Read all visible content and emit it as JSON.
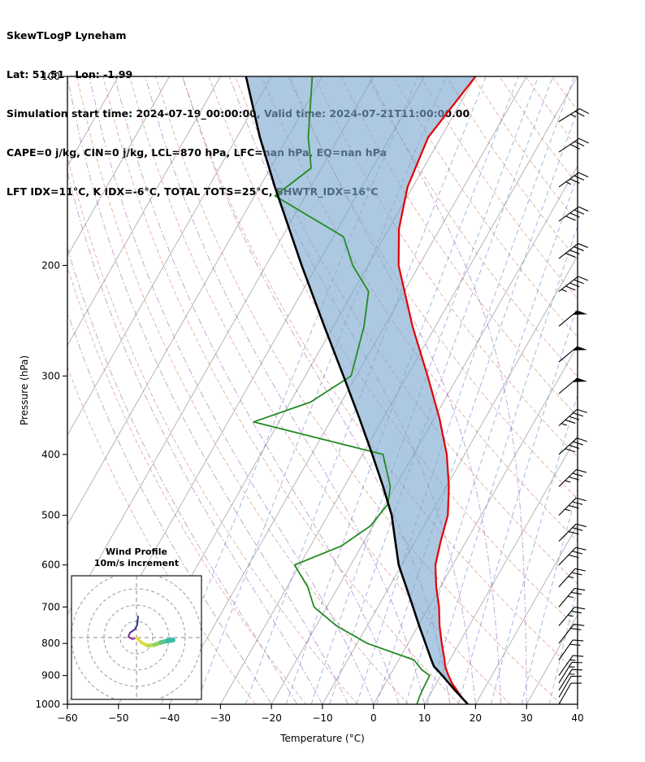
{
  "header": {
    "line1": "SkewTLogP Lyneham",
    "line2": "Lat: 51.51   Lon: -1.99",
    "line3": "Simulation start time: 2024-07-19_00:00:00, Valid time: 2024-07-21T11:00:00.00",
    "line4": "CAPE=0 j/kg, CIN=0 j/kg, LCL=870 hPa, LFC=nan hPa, EQ=nan hPa",
    "line5": "LFT IDX=11°C, K IDX=-6°C, TOTAL TOTS=25°C, SHWTR_IDX=16°C"
  },
  "chart_data": {
    "type": "line",
    "subtype": "skew-t-log-p",
    "title": "SkewTLogP Lyneham",
    "xlabel": "Temperature (°C)",
    "ylabel": "Pressure (hPa)",
    "xlim": [
      -60,
      40
    ],
    "pressure_lim": [
      100,
      1000
    ],
    "x_ticks": [
      -60,
      -50,
      -40,
      -30,
      -20,
      -10,
      0,
      10,
      20,
      30,
      40
    ],
    "y_ticks": [
      100,
      200,
      300,
      400,
      500,
      600,
      700,
      800,
      900,
      1000
    ],
    "skew_degC_per_decade": 70,
    "grid": true,
    "series": [
      {
        "name": "temperature",
        "color": "#e60000",
        "width": 2.2,
        "points": [
          [
            1000,
            18.5
          ],
          [
            975,
            16.5
          ],
          [
            950,
            14.8
          ],
          [
            925,
            13.0
          ],
          [
            900,
            11.5
          ],
          [
            870,
            9.8
          ],
          [
            850,
            9.0
          ],
          [
            800,
            6.6
          ],
          [
            750,
            4.2
          ],
          [
            700,
            2.0
          ],
          [
            650,
            -0.8
          ],
          [
            600,
            -3.4
          ],
          [
            550,
            -5.0
          ],
          [
            500,
            -6.5
          ],
          [
            450,
            -9.5
          ],
          [
            400,
            -13.5
          ],
          [
            350,
            -19.0
          ],
          [
            300,
            -26.0
          ],
          [
            250,
            -34.5
          ],
          [
            200,
            -44.0
          ],
          [
            175,
            -48.0
          ],
          [
            150,
            -51.0
          ],
          [
            125,
            -52.5
          ],
          [
            100,
            -50.0
          ]
        ]
      },
      {
        "name": "dewpoint",
        "color": "#228B22",
        "width": 1.8,
        "points": [
          [
            1000,
            8.5
          ],
          [
            975,
            8.2
          ],
          [
            950,
            8.0
          ],
          [
            925,
            7.9
          ],
          [
            900,
            7.8
          ],
          [
            880,
            5.5
          ],
          [
            850,
            3.0
          ],
          [
            800,
            -8.0
          ],
          [
            750,
            -16.0
          ],
          [
            700,
            -22.5
          ],
          [
            650,
            -26.0
          ],
          [
            600,
            -31.0
          ],
          [
            560,
            -24.0
          ],
          [
            520,
            -20.5
          ],
          [
            480,
            -19.5
          ],
          [
            450,
            -21.0
          ],
          [
            400,
            -26.0
          ],
          [
            355,
            -55.0
          ],
          [
            330,
            -46.0
          ],
          [
            300,
            -41.0
          ],
          [
            250,
            -44.0
          ],
          [
            220,
            -47.0
          ],
          [
            200,
            -53.0
          ],
          [
            180,
            -58.0
          ],
          [
            155,
            -76.0
          ],
          [
            140,
            -72.0
          ],
          [
            125,
            -76.0
          ],
          [
            100,
            -82.0
          ]
        ]
      },
      {
        "name": "parcel",
        "color": "#000000",
        "width": 2.6,
        "points": [
          [
            1000,
            18.5
          ],
          [
            950,
            14.4
          ],
          [
            900,
            10.3
          ],
          [
            870,
            7.6
          ],
          [
            850,
            6.4
          ],
          [
            800,
            3.4
          ],
          [
            750,
            0.2
          ],
          [
            700,
            -3.1
          ],
          [
            650,
            -6.7
          ],
          [
            600,
            -10.6
          ],
          [
            550,
            -13.9
          ],
          [
            500,
            -17.5
          ],
          [
            450,
            -22.4
          ],
          [
            400,
            -28.1
          ],
          [
            350,
            -34.7
          ],
          [
            300,
            -42.5
          ],
          [
            250,
            -51.8
          ],
          [
            200,
            -63.0
          ],
          [
            175,
            -69.5
          ],
          [
            150,
            -77.0
          ],
          [
            125,
            -85.5
          ],
          [
            100,
            -95.0
          ]
        ]
      }
    ],
    "shading": {
      "between": [
        "parcel",
        "temperature"
      ],
      "color": "#7ba7cf",
      "opacity": 0.62
    },
    "background": {
      "isotherm_color": "#8c8c8c",
      "isotherm_step": 10,
      "dry_adiabat_color": "#cc5555",
      "dry_adiabat_theta_K": [
        250,
        260,
        270,
        280,
        290,
        300,
        310,
        320,
        330,
        340,
        350,
        360,
        370,
        380,
        390,
        400,
        410,
        420,
        430,
        440,
        450,
        460
      ],
      "moist_adiabat_color": "#9060b0",
      "moist_adiabat_start_C": [
        -20,
        -15,
        -10,
        -5,
        0,
        5,
        10,
        15,
        20,
        25,
        30
      ],
      "mixing_ratio_color": "#5566cc",
      "mixing_ratio_values_g_kg": [
        0.1,
        0.2,
        0.5,
        1,
        1.5,
        2,
        3,
        4,
        6,
        8,
        12,
        18,
        26,
        36
      ]
    },
    "winds_p_dir_kt": [
      [
        1000,
        30,
        10
      ],
      [
        975,
        30,
        10
      ],
      [
        950,
        32,
        15
      ],
      [
        925,
        32,
        15
      ],
      [
        900,
        35,
        15
      ],
      [
        850,
        35,
        20
      ],
      [
        800,
        38,
        20
      ],
      [
        750,
        40,
        25
      ],
      [
        700,
        40,
        25
      ],
      [
        650,
        42,
        25
      ],
      [
        600,
        44,
        30
      ],
      [
        550,
        45,
        30
      ],
      [
        500,
        45,
        35
      ],
      [
        450,
        46,
        35
      ],
      [
        400,
        48,
        40
      ],
      [
        360,
        48,
        45
      ],
      [
        320,
        50,
        50
      ],
      [
        285,
        50,
        50
      ],
      [
        250,
        50,
        50
      ],
      [
        220,
        52,
        45
      ],
      [
        195,
        52,
        40
      ],
      [
        170,
        54,
        40
      ],
      [
        150,
        54,
        35
      ],
      [
        132,
        56,
        30
      ],
      [
        118,
        58,
        25
      ]
    ],
    "hodograph": {
      "title_line1": "Wind Profile",
      "title_line2": "10m/s increment",
      "ring_interval_ms": 10,
      "rings_ms": [
        10,
        20,
        30,
        40
      ],
      "trace_points_uv_ms": [
        [
          1,
          13
        ],
        [
          0.5,
          8
        ],
        [
          -1,
          5
        ],
        [
          -4,
          3
        ],
        [
          -5,
          0.5
        ],
        [
          -2.5,
          -1
        ],
        [
          0,
          0
        ],
        [
          3,
          -3
        ],
        [
          7,
          -5
        ],
        [
          11,
          -4.5
        ],
        [
          15,
          -3
        ],
        [
          19,
          -2
        ],
        [
          22.5,
          -1.5
        ]
      ],
      "trace_segment_colors": [
        "#2d3f8f",
        "#2d3f8f",
        "#51338f",
        "#6d2f8f",
        "#8f2d8a",
        "#b04fc0",
        "#e3dd30",
        "#d6de3a",
        "#b8d945",
        "#8ed35e",
        "#5fc688",
        "#3cbfa6"
      ],
      "trace_segment_widths": [
        2,
        2,
        2,
        2,
        2,
        2.5,
        3.5,
        4,
        4.5,
        5,
        5.5,
        6
      ]
    }
  }
}
